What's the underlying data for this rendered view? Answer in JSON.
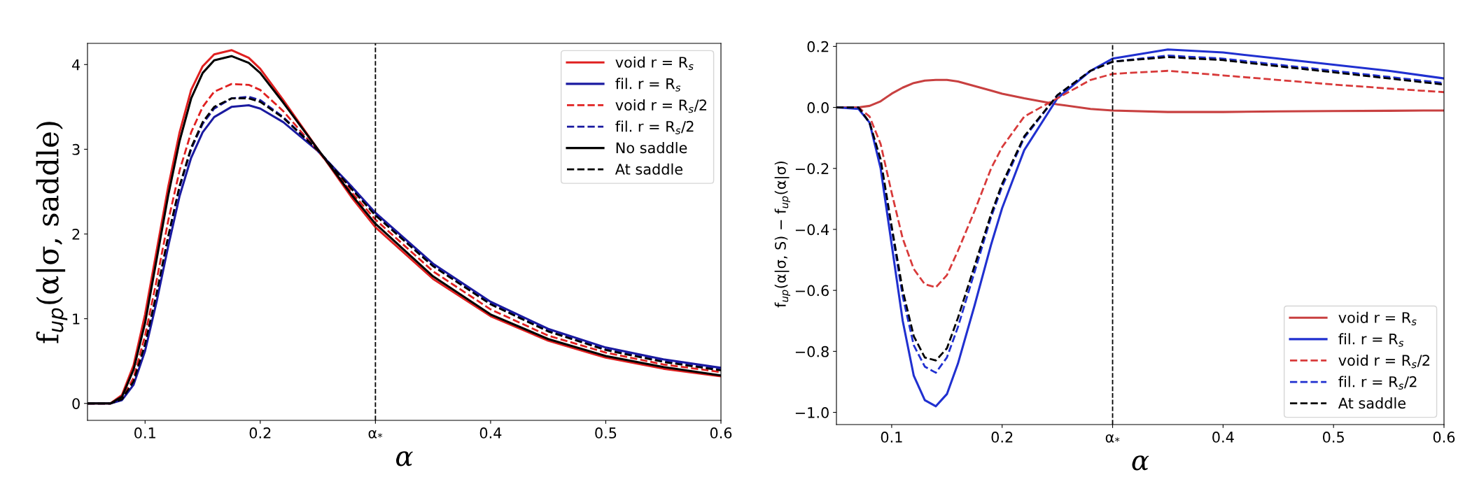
{
  "chart_data": [
    {
      "type": "line",
      "xlabel": "α",
      "ylabel": "f$_{up}$(α|σ, saddle)",
      "x": [
        0.05,
        0.07,
        0.08,
        0.09,
        0.1,
        0.11,
        0.12,
        0.13,
        0.14,
        0.15,
        0.16,
        0.175,
        0.19,
        0.2,
        0.22,
        0.25,
        0.28,
        0.3,
        0.35,
        0.4,
        0.45,
        0.5,
        0.55,
        0.6
      ],
      "xlim": [
        0.05,
        0.6
      ],
      "ylim": [
        -0.2,
        4.25
      ],
      "xticks": [
        0.1,
        0.2,
        {
          "value": 0.3,
          "label": "α$_{*}$"
        },
        0.4,
        0.5,
        0.6
      ],
      "yticks": [
        0,
        1,
        2,
        3,
        4
      ],
      "legend": "top right",
      "grid": false,
      "ref_lines": [
        {
          "axis": "x",
          "value": 0.3,
          "color": "#000000",
          "line_style": "dashed"
        }
      ],
      "series": [
        {
          "name": "void r = R$_{s}$",
          "color": "#e02020",
          "line_style": "solid",
          "values": [
            0,
            0,
            0.1,
            0.45,
            1.05,
            1.8,
            2.55,
            3.2,
            3.7,
            3.98,
            4.12,
            4.17,
            4.08,
            3.95,
            3.58,
            3.0,
            2.42,
            2.08,
            1.47,
            1.03,
            0.74,
            0.54,
            0.41,
            0.32
          ]
        },
        {
          "name": "fil. r = R$_{s}$",
          "color": "#1a1aa0",
          "line_style": "solid",
          "values": [
            0,
            0,
            0.04,
            0.22,
            0.62,
            1.2,
            1.85,
            2.45,
            2.9,
            3.2,
            3.38,
            3.5,
            3.52,
            3.48,
            3.32,
            2.98,
            2.55,
            2.25,
            1.65,
            1.2,
            0.88,
            0.66,
            0.52,
            0.42
          ]
        },
        {
          "name": "void r = R$_{s}$/2",
          "color": "#e02020",
          "line_style": "dashed",
          "values": [
            0,
            0,
            0.06,
            0.3,
            0.8,
            1.45,
            2.15,
            2.75,
            3.2,
            3.5,
            3.68,
            3.77,
            3.76,
            3.7,
            3.45,
            2.98,
            2.48,
            2.17,
            1.56,
            1.11,
            0.8,
            0.6,
            0.46,
            0.37
          ]
        },
        {
          "name": "fil. r = R$_{s}$/2",
          "color": "#1a1aa0",
          "line_style": "dashed",
          "values": [
            0,
            0,
            0.05,
            0.25,
            0.68,
            1.28,
            1.95,
            2.55,
            3.0,
            3.3,
            3.48,
            3.6,
            3.62,
            3.58,
            3.38,
            2.99,
            2.53,
            2.23,
            1.63,
            1.18,
            0.86,
            0.64,
            0.5,
            0.4
          ]
        },
        {
          "name": "No saddle",
          "color": "#000000",
          "line_style": "solid",
          "values": [
            0,
            0,
            0.08,
            0.4,
            0.95,
            1.7,
            2.45,
            3.1,
            3.6,
            3.9,
            4.05,
            4.1,
            4.02,
            3.9,
            3.55,
            3.0,
            2.45,
            2.12,
            1.5,
            1.05,
            0.76,
            0.56,
            0.43,
            0.33
          ]
        },
        {
          "name": "At saddle",
          "color": "#000000",
          "line_style": "dashed",
          "values": [
            0,
            0,
            0.05,
            0.26,
            0.7,
            1.3,
            1.97,
            2.57,
            3.02,
            3.32,
            3.5,
            3.6,
            3.6,
            3.56,
            3.37,
            2.99,
            2.52,
            2.22,
            1.62,
            1.17,
            0.85,
            0.63,
            0.49,
            0.39
          ]
        }
      ]
    },
    {
      "type": "line",
      "xlabel": "α",
      "ylabel": "f$_{up}$(α|σ, S) − f$_{up}$(α|σ)",
      "x": [
        0.05,
        0.07,
        0.08,
        0.09,
        0.1,
        0.11,
        0.12,
        0.13,
        0.14,
        0.15,
        0.16,
        0.175,
        0.19,
        0.2,
        0.22,
        0.25,
        0.28,
        0.3,
        0.35,
        0.4,
        0.45,
        0.5,
        0.55,
        0.6
      ],
      "xlim": [
        0.05,
        0.6
      ],
      "ylim": [
        -1.04,
        0.21
      ],
      "xticks": [
        0.1,
        0.2,
        {
          "value": 0.3,
          "label": "α$_{*}$"
        },
        0.4,
        0.5,
        0.6
      ],
      "yticks": [
        {
          "value": -1.0,
          "label": "−1.0"
        },
        {
          "value": -0.8,
          "label": "−0.8"
        },
        {
          "value": -0.6,
          "label": "−0.6"
        },
        {
          "value": -0.4,
          "label": "−0.4"
        },
        {
          "value": -0.2,
          "label": "−0.2"
        },
        {
          "value": 0.0,
          "label": "0.0"
        },
        {
          "value": 0.2,
          "label": "0.2"
        }
      ],
      "legend": "bottom right",
      "grid": false,
      "ref_lines": [
        {
          "axis": "x",
          "value": 0.3,
          "color": "#000000",
          "line_style": "dashed"
        }
      ],
      "series": [
        {
          "name": "void r = R$_{s}$",
          "color": "#c84040",
          "line_style": "solid",
          "values": [
            0,
            0,
            0.005,
            0.02,
            0.045,
            0.065,
            0.08,
            0.088,
            0.09,
            0.09,
            0.085,
            0.07,
            0.055,
            0.045,
            0.03,
            0.01,
            -0.005,
            -0.01,
            -0.015,
            -0.015,
            -0.013,
            -0.012,
            -0.011,
            -0.01
          ]
        },
        {
          "name": "fil. r = R$_{s}$",
          "color": "#2030d0",
          "line_style": "solid",
          "values": [
            0,
            -0.005,
            -0.05,
            -0.2,
            -0.45,
            -0.7,
            -0.88,
            -0.96,
            -0.98,
            -0.94,
            -0.84,
            -0.65,
            -0.45,
            -0.33,
            -0.14,
            0.03,
            0.12,
            0.16,
            0.19,
            0.18,
            0.16,
            0.14,
            0.12,
            0.095
          ]
        },
        {
          "name": "void r = R$_{s}$/2",
          "color": "#d83a3a",
          "line_style": "dashed",
          "values": [
            0,
            0,
            -0.03,
            -0.12,
            -0.28,
            -0.43,
            -0.53,
            -0.58,
            -0.59,
            -0.55,
            -0.47,
            -0.34,
            -0.2,
            -0.13,
            -0.03,
            0.03,
            0.09,
            0.11,
            0.12,
            0.105,
            0.09,
            0.075,
            0.062,
            0.05
          ]
        },
        {
          "name": "fil. r = R$_{s}$/2",
          "color": "#2030d0",
          "line_style": "dashed",
          "values": [
            0,
            0,
            -0.05,
            -0.18,
            -0.4,
            -0.62,
            -0.78,
            -0.85,
            -0.87,
            -0.82,
            -0.72,
            -0.54,
            -0.36,
            -0.26,
            -0.1,
            0.04,
            0.12,
            0.15,
            0.17,
            0.16,
            0.14,
            0.12,
            0.1,
            0.08
          ]
        },
        {
          "name": "At saddle",
          "color": "#000000",
          "line_style": "dashed",
          "values": [
            0,
            0,
            -0.05,
            -0.17,
            -0.39,
            -0.6,
            -0.75,
            -0.82,
            -0.83,
            -0.79,
            -0.69,
            -0.52,
            -0.35,
            -0.25,
            -0.095,
            0.04,
            0.12,
            0.15,
            0.165,
            0.155,
            0.135,
            0.115,
            0.095,
            0.075
          ]
        }
      ]
    }
  ]
}
